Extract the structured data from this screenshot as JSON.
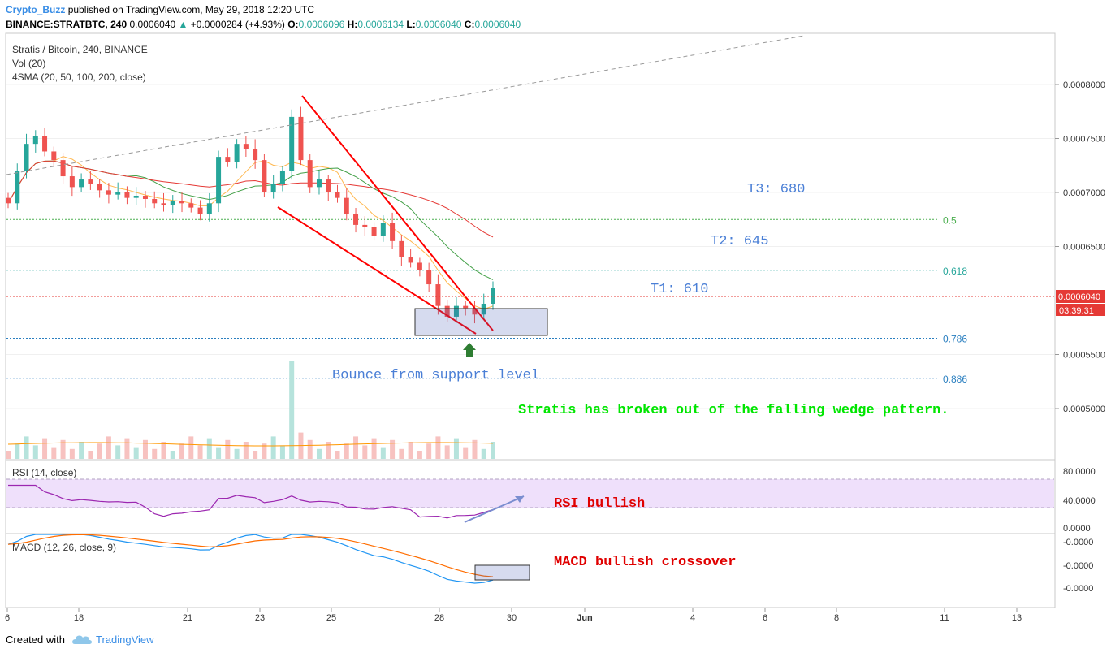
{
  "header": {
    "author": "Crypto_Buzz",
    "published": "published on TradingView.com, May 29, 2018 12:20 UTC",
    "symbol_line": "BINANCE:STRATBTC, 240",
    "last": "0.0006040",
    "change": "+0.0000284 (+4.93%)",
    "o_label": "O:",
    "o_val": "0.0006096",
    "h_label": "H:",
    "h_val": "0.0006134",
    "l_label": "L:",
    "l_val": "0.0006040",
    "c_label": "C:",
    "c_val": "0.0006040"
  },
  "legend": {
    "title": "Stratis / Bitcoin, 240, BINANCE",
    "vol": "Vol (20)",
    "sma": "4SMA (20, 50, 100, 200, close)",
    "rsi": "RSI (14, close)",
    "macd": "MACD (12, 26, close, 9)"
  },
  "annotations": {
    "t3": "T3: 680",
    "t2": "T2: 645",
    "t1": "T1: 610",
    "bounce": "Bounce from support level",
    "breakout": "Stratis has broken out of the falling wedge pattern.",
    "rsi_note": "RSI bullish",
    "macd_note": "MACD bullish crossover"
  },
  "price_badges": {
    "price": "0.0006040",
    "timer": "03:39:31"
  },
  "footer": {
    "created": "Created with",
    "brand": "TradingView"
  },
  "colors": {
    "up": "#26a69a",
    "down": "#ef5350",
    "wedge": "#ff0000",
    "fib": "#4caf50",
    "blue_text": "#4a7fd6",
    "green_text": "#00e600",
    "red_text": "#e00000",
    "rsi_band": "#efe0fb",
    "rsi_line": "#9c27b0"
  },
  "chart_data": [
    {
      "type": "candlestick",
      "title": "Stratis / Bitcoin, 240, BINANCE",
      "y_axis_ticks": [
        "0.0008000",
        "0.0007500",
        "0.0007000",
        "0.0006500",
        "0.0005500",
        "0.0005000"
      ],
      "x_axis_ticks": [
        "6",
        "18",
        "21",
        "23",
        "25",
        "28",
        "30",
        "Jun",
        "4",
        "6",
        "8",
        "11",
        "13"
      ],
      "ylim": [
        0.00045,
        0.00085
      ],
      "fib_levels": [
        {
          "label": "0.5",
          "value": 0.000675
        },
        {
          "label": "0.618",
          "value": 0.000628
        },
        {
          "label": "0.786",
          "value": 0.000565
        },
        {
          "label": "0.886",
          "value": 0.000528
        }
      ],
      "last_price": 0.000604,
      "closes": [
        0.00069,
        0.00072,
        0.000745,
        0.000752,
        0.000738,
        0.00073,
        0.000715,
        0.000705,
        0.000712,
        0.000708,
        0.000702,
        0.000698,
        0.0007,
        0.000695,
        0.000697,
        0.000694,
        0.00069,
        0.000688,
        0.000692,
        0.00069,
        0.000686,
        0.00068,
        0.00069,
        0.000733,
        0.000728,
        0.000745,
        0.00074,
        0.00073,
        0.0007,
        0.000708,
        0.00072,
        0.00077,
        0.00073,
        0.000705,
        0.000712,
        0.0007,
        0.000695,
        0.00068,
        0.00067,
        0.000668,
        0.00066,
        0.000672,
        0.000655,
        0.00064,
        0.000635,
        0.000628,
        0.000615,
        0.000595,
        0.000585,
        0.000595,
        0.000593,
        0.000587,
        0.000597,
        0.000612
      ]
    },
    {
      "type": "line",
      "title": "RSI (14, close)",
      "y_axis_ticks": [
        "80.0000",
        "40.0000",
        "0.0000"
      ],
      "ylim": [
        0,
        100
      ]
    },
    {
      "type": "line",
      "title": "MACD (12, 26, close, 9)",
      "y_axis_ticks": [
        "-0.0000",
        "-0.0000",
        "-0.0000",
        "-0.0000"
      ]
    }
  ]
}
